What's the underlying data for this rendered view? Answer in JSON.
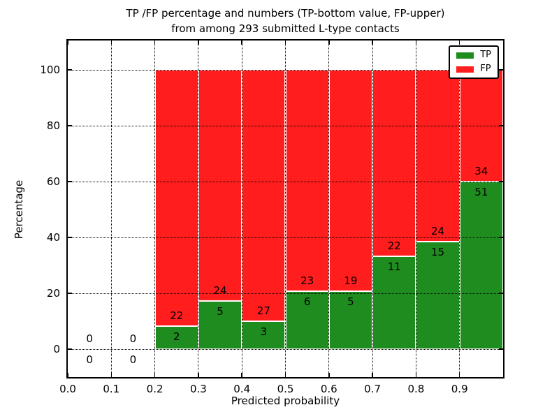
{
  "title": {
    "line1": "TP /FP percentage and numbers (TP-bottom value, FP-upper)",
    "line2": "from among 293 submitted L-type contacts"
  },
  "axes": {
    "xlabel": "Predicted probability",
    "ylabel": "Percentage"
  },
  "legend": {
    "items": [
      {
        "label": "TP",
        "color": "#1e8c1e"
      },
      {
        "label": "FP",
        "color": "#ff1d1d"
      }
    ]
  },
  "chart_data": {
    "type": "bar",
    "stacked": true,
    "title": "TP /FP percentage and numbers (TP-bottom value, FP-upper) from among 293 submitted L-type contacts",
    "xlabel": "Predicted probability",
    "ylabel": "Percentage",
    "total_contacts": 293,
    "bin_edges": [
      0.0,
      0.1,
      0.2,
      0.3,
      0.4,
      0.5,
      0.6,
      0.7,
      0.8,
      0.9,
      1.0
    ],
    "series": [
      {
        "name": "TP",
        "color": "#1e8c1e",
        "counts": [
          0,
          0,
          2,
          5,
          3,
          6,
          5,
          11,
          15,
          51
        ]
      },
      {
        "name": "FP",
        "color": "#ff1d1d",
        "counts": [
          0,
          0,
          22,
          24,
          27,
          23,
          19,
          22,
          24,
          34
        ]
      }
    ],
    "tp_percent_per_bin": [
      0,
      0,
      8.33,
      17.24,
      10.0,
      20.69,
      20.83,
      33.33,
      38.46,
      60.0
    ],
    "stack_total_percent": 100,
    "x_ticks": [
      "0.0",
      "0.1",
      "0.2",
      "0.3",
      "0.4",
      "0.5",
      "0.6",
      "0.7",
      "0.8",
      "0.9"
    ],
    "y_ticks": [
      "0",
      "20",
      "40",
      "60",
      "80",
      "100"
    ],
    "xlim": [
      0.0,
      1.0
    ],
    "ylim": [
      -10,
      110
    ],
    "grid": "dotted",
    "legend_position": "upper right"
  }
}
